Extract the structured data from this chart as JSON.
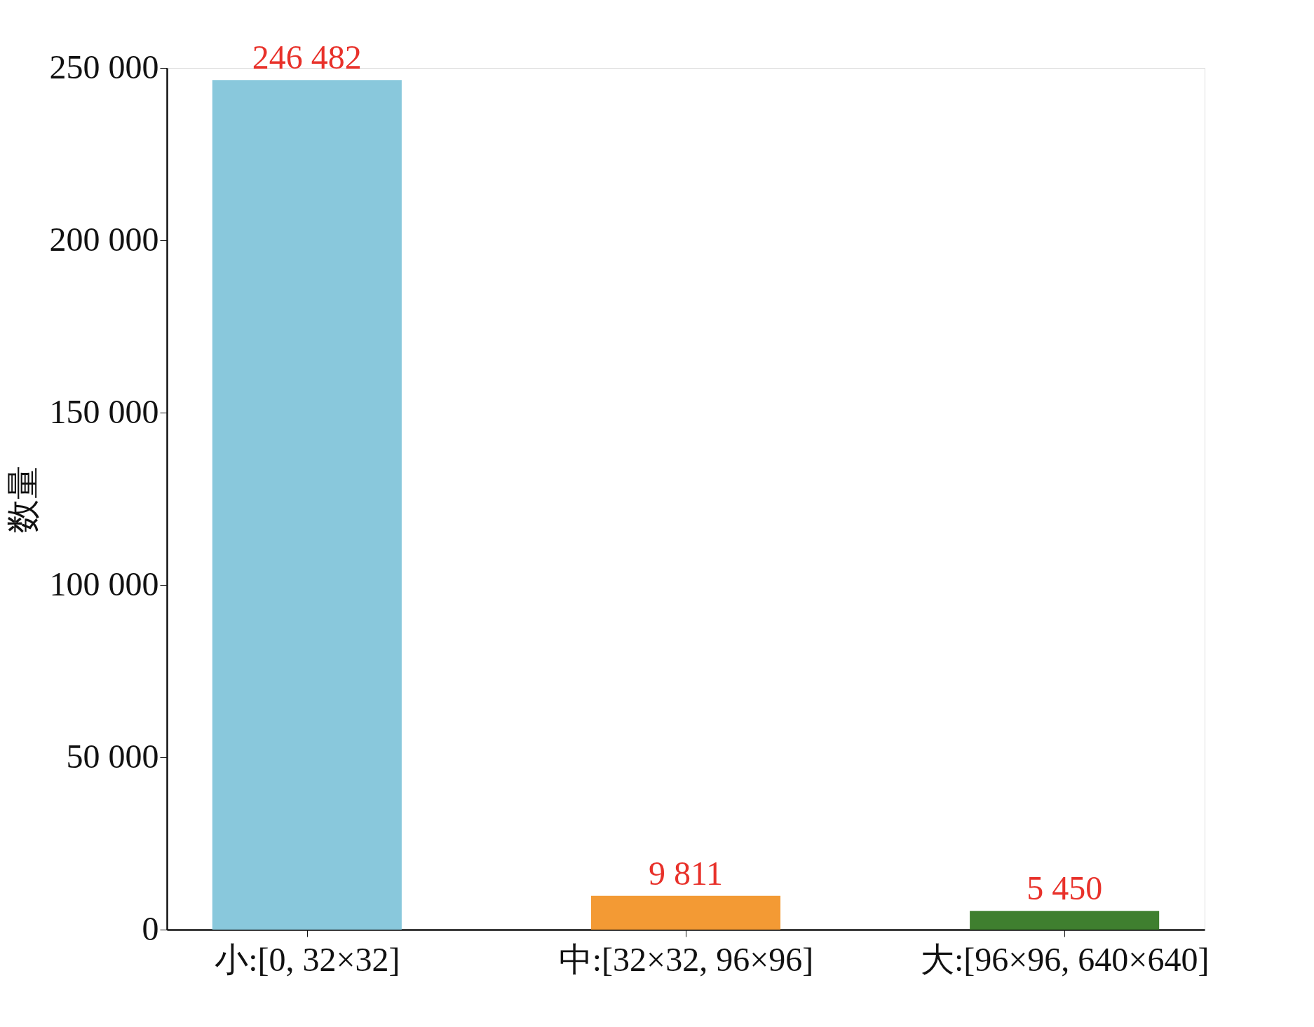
{
  "chart_data": {
    "type": "bar",
    "ylabel": "数量",
    "categories": [
      "小:[0, 32×32]",
      "中:[32×32, 96×96]",
      "大:[96×96, 640×640]"
    ],
    "values": [
      246482,
      9811,
      5450
    ],
    "colors": [
      "#89c8dc",
      "#f39a34",
      "#3f7f2f"
    ],
    "value_labels": [
      "246 482",
      "9 811",
      "5 450"
    ],
    "ylim": [
      0,
      250000
    ],
    "yticks": [
      {
        "value": 0,
        "label": "0"
      },
      {
        "value": 50000,
        "label": "50 000"
      },
      {
        "value": 100000,
        "label": "100 000"
      },
      {
        "value": 150000,
        "label": "150 000"
      },
      {
        "value": 200000,
        "label": "200 000"
      },
      {
        "value": 250000,
        "label": "250 000"
      }
    ],
    "grid": false
  }
}
